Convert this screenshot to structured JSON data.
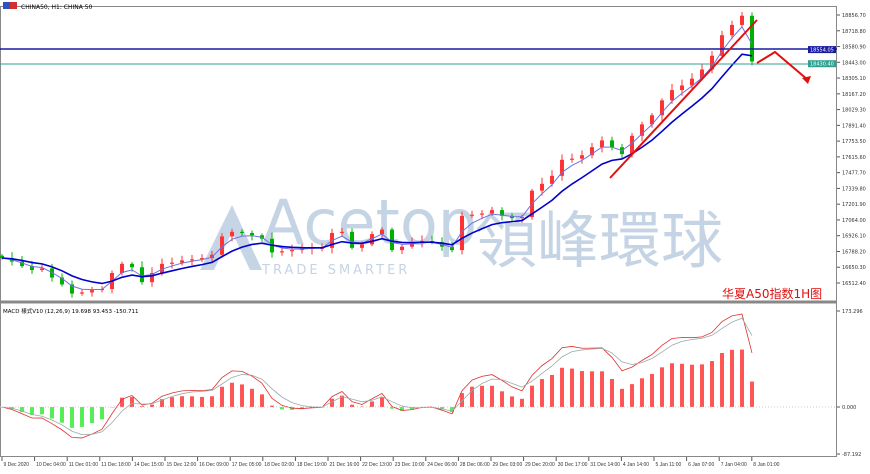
{
  "header": {
    "title": "CHINA50, H1:  CHINA 50"
  },
  "annotation_label": "华夏A50指数1H图",
  "watermark": {
    "brand": "Acetop",
    "brand_cn": "領峰環球",
    "slogan": "TRADE SMARTER"
  },
  "colors": {
    "bull": "#ff3333",
    "bear": "#00b000",
    "ma": "#0000cc",
    "fast_ma": "#7070e0",
    "hist_pos": "#ff5555",
    "hist_neg": "#55ee55",
    "trend": "#e01010",
    "line_blue": "#1a1aa0",
    "line_teal": "#30a090"
  },
  "chart_data": [
    {
      "type": "candlestick",
      "title": "CHINA50, H1:  CHINA 50",
      "yticks": [
        "18856.70",
        "18718.80",
        "18580.90",
        "18443.00",
        "18305.10",
        "18167.20",
        "18029.30",
        "17891.40",
        "17753.50",
        "17615.60",
        "17477.70",
        "17339.80",
        "17201.90",
        "17064.00",
        "16926.10",
        "16788.20",
        "16650.30",
        "16512.40"
      ],
      "ylim": [
        16512.4,
        18856.7
      ],
      "xticks": [
        "9 Dec 2020",
        "10 Dec 04:00",
        "11 Dec 01:00",
        "11 Dec 18:00",
        "14 Dec 15:00",
        "15 Dec 12:00",
        "16 Dec 09:00",
        "17 Dec 05:00",
        "18 Dec 02:00",
        "18 Dec 19:00",
        "21 Dec 16:00",
        "22 Dec 13:00",
        "23 Dec 10:00",
        "24 Dec 06:00",
        "28 Dec 06:00",
        "29 Dec 03:00",
        "29 Dec 20:00",
        "30 Dec 17:00",
        "31 Dec 14:00",
        "4 Jan 14:00",
        "5 Jan 11:00",
        "6 Jan 07:00",
        "7 Jan 04:00",
        "8 Jan 01:00"
      ],
      "horizontal_lines": [
        {
          "price": "18554.05",
          "color": "#1a1aa0"
        },
        {
          "price": "18430.40",
          "color": "#30a090"
        }
      ],
      "closes": [
        16731,
        16700,
        16660,
        16626,
        16640,
        16560,
        16500,
        16420,
        16430,
        16450,
        16460,
        16600,
        16680,
        16650,
        16520,
        16600,
        16680,
        16690,
        16710,
        16720,
        16730,
        16760,
        16920,
        16960,
        16950,
        16930,
        16900,
        16780,
        16790,
        16800,
        16810,
        16820,
        16820,
        16950,
        16960,
        16820,
        16850,
        16940,
        16980,
        16800,
        16830,
        16860,
        16880,
        16870,
        16830,
        16800,
        17100,
        17110,
        17120,
        17150,
        17100,
        17080,
        17090,
        17320,
        17380,
        17450,
        17590,
        17600,
        17630,
        17700,
        17760,
        17700,
        17640,
        17800,
        17900,
        17980,
        18110,
        18200,
        18240,
        18300,
        18380,
        18500,
        18680,
        18770,
        18850,
        18450
      ]
    },
    {
      "type": "bar",
      "title": "MACD(12,26,9) 19.698 93.453 -150.711",
      "label": "MACD 樣式V10 (12,26,9) 19.698 93.453 -150.711",
      "yticks": [
        "173.296",
        "0.000",
        "-87.192"
      ],
      "ylim": [
        -87.192,
        173.296
      ]
    }
  ]
}
